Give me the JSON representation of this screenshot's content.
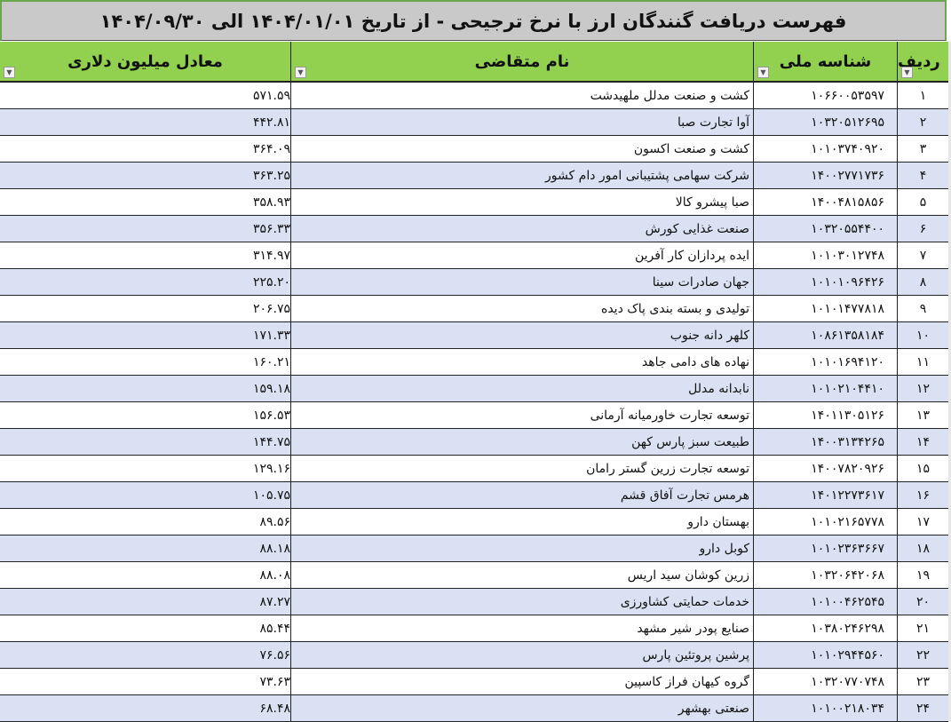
{
  "title": "فهرست دریافت گنندگان ارز با نرخ ترجیحی - از تاریخ ۱۴۰۴/۰۱/۰۱ الی ۱۴۰۴/۰۹/۳۰",
  "headers": {
    "index": "ردیف",
    "national_id": "شناسه ملی",
    "name": "نام متقاضی",
    "value": "معادل میلیون دلاری"
  },
  "filter_icon": "dropdown-arrow",
  "colors": {
    "header": "#92d050",
    "title_bg": "#c9c9c9",
    "alt_row": "#d9e1f2"
  },
  "rows": [
    {
      "index": "۱",
      "national_id": "۱۰۶۶۰۰۵۳۵۹۷",
      "name": "کشت و صنعت مدلل ملهیدشت",
      "value": "۵۷۱.۵۹"
    },
    {
      "index": "۲",
      "national_id": "۱۰۳۲۰۵۱۲۶۹۵",
      "name": "آوا تجارت صبا",
      "value": "۴۴۲.۸۱"
    },
    {
      "index": "۳",
      "national_id": "۱۰۱۰۳۷۴۰۹۲۰",
      "name": "کشت و صنعت اکسون",
      "value": "۳۶۴.۰۹"
    },
    {
      "index": "۴",
      "national_id": "۱۴۰۰۲۷۷۱۷۳۶",
      "name": "شرکت سهامی پشتیبانی امور دام کشور",
      "value": "۳۶۳.۲۵"
    },
    {
      "index": "۵",
      "national_id": "۱۴۰۰۴۸۱۵۸۵۶",
      "name": "صبا پیشرو کالا",
      "value": "۳۵۸.۹۳"
    },
    {
      "index": "۶",
      "national_id": "۱۰۳۲۰۵۵۴۴۰۰",
      "name": "صنعت غذایی کورش",
      "value": "۳۵۶.۳۳"
    },
    {
      "index": "۷",
      "national_id": "۱۰۱۰۳۰۱۲۷۴۸",
      "name": "ایده پردازان کار آفرین",
      "value": "۳۱۴.۹۷"
    },
    {
      "index": "۸",
      "national_id": "۱۰۱۰۱۰۹۶۴۲۶",
      "name": "جهان صادرات سینا",
      "value": "۲۲۵.۲۰"
    },
    {
      "index": "۹",
      "national_id": "۱۰۱۰۱۴۷۷۸۱۸",
      "name": "تولیدی و بسته بندی پاک دیده",
      "value": "۲۰۶.۷۵"
    },
    {
      "index": "۱۰",
      "national_id": "۱۰۸۶۱۳۵۸۱۸۴",
      "name": "کلهر دانه جنوب",
      "value": "۱۷۱.۳۳"
    },
    {
      "index": "۱۱",
      "national_id": "۱۰۱۰۱۶۹۴۱۲۰",
      "name": "نهاده های دامی جاهد",
      "value": "۱۶۰.۲۱"
    },
    {
      "index": "۱۲",
      "national_id": "۱۰۱۰۲۱۰۴۴۱۰",
      "name": "نابدانه مدلل",
      "value": "۱۵۹.۱۸"
    },
    {
      "index": "۱۳",
      "national_id": "۱۴۰۱۱۳۰۵۱۲۶",
      "name": "توسعه تجارت خاورمیانه آرمانی",
      "value": "۱۵۶.۵۳"
    },
    {
      "index": "۱۴",
      "national_id": "۱۴۰۰۳۱۳۴۲۶۵",
      "name": "طبیعت سبز پارس کهن",
      "value": "۱۴۴.۷۵"
    },
    {
      "index": "۱۵",
      "national_id": "۱۴۰۰۷۸۲۰۹۲۶",
      "name": "توسعه تجارت زرین گستر رامان",
      "value": "۱۲۹.۱۶"
    },
    {
      "index": "۱۶",
      "national_id": "۱۴۰۱۲۲۷۳۶۱۷",
      "name": "هرمس تجارت آفاق قشم",
      "value": "۱۰۵.۷۵"
    },
    {
      "index": "۱۷",
      "national_id": "۱۰۱۰۲۱۶۵۷۷۸",
      "name": "بهستان دارو",
      "value": "۸۹.۵۶"
    },
    {
      "index": "۱۸",
      "national_id": "۱۰۱۰۲۳۶۳۶۶۷",
      "name": "کوبل دارو",
      "value": "۸۸.۱۸"
    },
    {
      "index": "۱۹",
      "national_id": "۱۰۳۲۰۶۴۲۰۶۸",
      "name": "زرین کوشان سید اریس",
      "value": "۸۸.۰۸"
    },
    {
      "index": "۲۰",
      "national_id": "۱۰۱۰۰۴۶۲۵۴۵",
      "name": "خدمات حمایتی کشاورزی",
      "value": "۸۷.۲۷"
    },
    {
      "index": "۲۱",
      "national_id": "۱۰۳۸۰۲۴۶۲۹۸",
      "name": "صنایع پودر شیر مشهد",
      "value": "۸۵.۴۴"
    },
    {
      "index": "۲۲",
      "national_id": "۱۰۱۰۲۹۴۴۵۶۰",
      "name": "پرشین پروتئین پارس",
      "value": "۷۶.۵۶"
    },
    {
      "index": "۲۳",
      "national_id": "۱۰۳۲۰۷۷۰۷۴۸",
      "name": "گروه کیهان فراز کاسپین",
      "value": "۷۳.۶۳"
    },
    {
      "index": "۲۴",
      "national_id": "۱۰۱۰۰۲۱۸۰۳۴",
      "name": "صنعتی بهشهر",
      "value": "۶۸.۴۸"
    }
  ]
}
